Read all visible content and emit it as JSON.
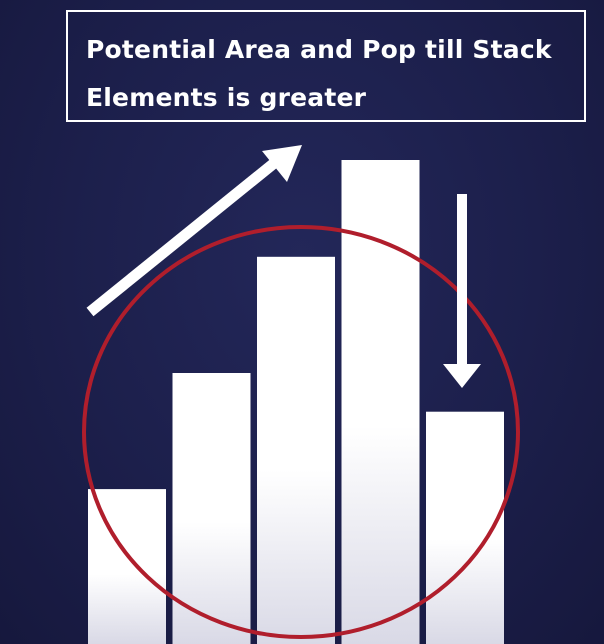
{
  "title": "Potential Area and Pop till Stack Elements is greater",
  "colors": {
    "background": "#1b1e48",
    "bar": "#ffffff",
    "bar_fade": "#dcdce8",
    "circle": "#b01e2c",
    "arrow": "#ffffff"
  },
  "bars": {
    "values": [
      0.32,
      0.56,
      0.8,
      1.0,
      0.48
    ]
  },
  "icons": {
    "up_arrow": "arrow-up-right-icon",
    "down_arrow": "arrow-down-icon"
  }
}
